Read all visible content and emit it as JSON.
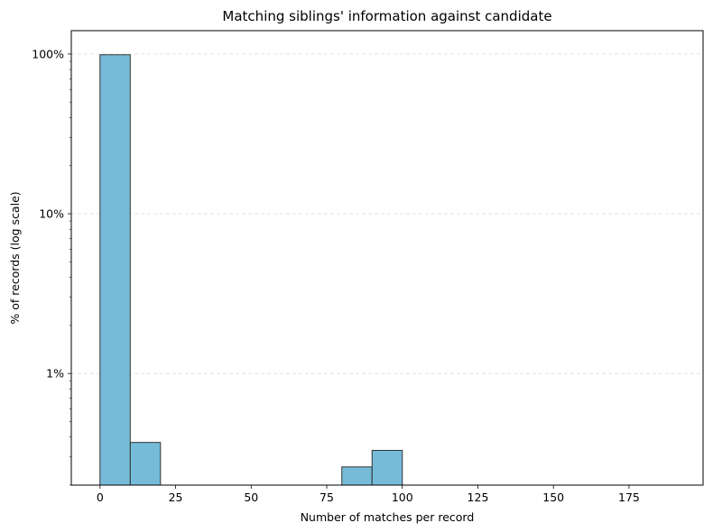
{
  "chart_data": {
    "type": "bar",
    "title": "Matching siblings' information against candidate",
    "xlabel": "Number of matches per record",
    "ylabel": "% of records (log scale)",
    "x_scale": "linear",
    "y_scale": "log",
    "xlim": [
      -9.5,
      199.5
    ],
    "ylim": [
      0.2,
      140
    ],
    "x_ticks": [
      0,
      25,
      50,
      75,
      100,
      125,
      150,
      175
    ],
    "x_tick_labels": [
      "0",
      "25",
      "50",
      "75",
      "100",
      "125",
      "150",
      "175"
    ],
    "y_ticks": [
      1,
      10,
      100
    ],
    "y_tick_labels": [
      "1%",
      "10%",
      "100%"
    ],
    "grid": "y-major-dashed",
    "bins": [
      {
        "start": 0,
        "end": 10,
        "value": 98.9
      },
      {
        "start": 10,
        "end": 20,
        "value": 0.37
      },
      {
        "start": 80,
        "end": 90,
        "value": 0.26
      },
      {
        "start": 90,
        "end": 100,
        "value": 0.33
      }
    ],
    "bar_color": "#76bcd8",
    "bar_edge_color": "#333333"
  }
}
